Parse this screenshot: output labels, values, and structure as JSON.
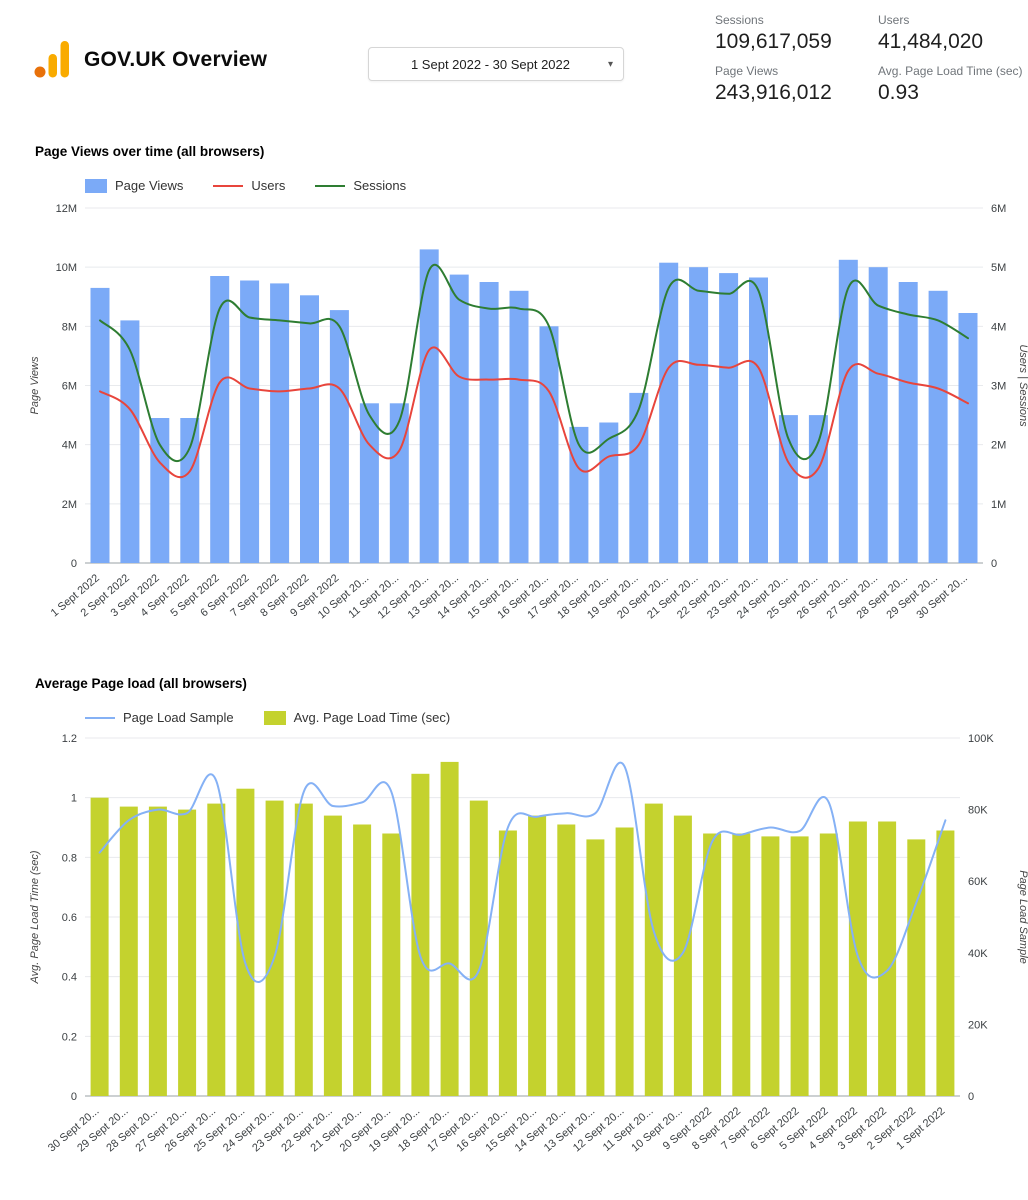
{
  "header": {
    "title": "GOV.UK Overview",
    "date_range": "1 Sept 2022 - 30 Sept 2022",
    "scorecards": [
      {
        "label": "Sessions",
        "value": "109,617,059"
      },
      {
        "label": "Users",
        "value": "41,484,020"
      },
      {
        "label": "Page Views",
        "value": "243,916,012"
      },
      {
        "label": "Avg. Page Load Time (sec)",
        "value": "0.93"
      }
    ]
  },
  "icons": {
    "dropdown_caret": "▾"
  },
  "colors": {
    "logo_primary": "#F9AB00",
    "logo_accent": "#E8710A"
  },
  "chart_data": [
    {
      "type": "bar",
      "subtype": "combo-bar-line",
      "title": "Page Views over time (all browsers)",
      "categories": [
        "1 Sept 2022",
        "2 Sept 2022",
        "3 Sept 2022",
        "4 Sept 2022",
        "5 Sept 2022",
        "6 Sept 2022",
        "7 Sept 2022",
        "8 Sept 2022",
        "9 Sept 2022",
        "10 Sept 20...",
        "11 Sept 20...",
        "12 Sept 20...",
        "13 Sept 20...",
        "14 Sept 20...",
        "15 Sept 20...",
        "16 Sept 20...",
        "17 Sept 20...",
        "18 Sept 20...",
        "19 Sept 20...",
        "20 Sept 20...",
        "21 Sept 20...",
        "22 Sept 20...",
        "23 Sept 20...",
        "24 Sept 20...",
        "25 Sept 20...",
        "26 Sept 20...",
        "27 Sept 20...",
        "28 Sept 20...",
        "29 Sept 20...",
        "30 Sept 20..."
      ],
      "series": [
        {
          "name": "Page Views",
          "type": "bar",
          "axis": "left",
          "color": "#7BAAF7",
          "values": [
            9300000,
            8200000,
            4900000,
            4900000,
            9700000,
            9550000,
            9450000,
            9050000,
            8550000,
            5400000,
            5400000,
            10600000,
            9750000,
            9500000,
            9200000,
            8000000,
            4600000,
            4750000,
            5750000,
            10150000,
            10000000,
            9800000,
            9650000,
            5000000,
            5000000,
            10250000,
            10000000,
            9500000,
            9200000,
            8450000
          ]
        },
        {
          "name": "Users",
          "type": "line",
          "axis": "right",
          "color": "#E8453C",
          "values": [
            2900000,
            2600000,
            1700000,
            1550000,
            3050000,
            2950000,
            2900000,
            2950000,
            2950000,
            2000000,
            1900000,
            3600000,
            3150000,
            3100000,
            3100000,
            2900000,
            1600000,
            1800000,
            2000000,
            3300000,
            3350000,
            3300000,
            3300000,
            1700000,
            1600000,
            3250000,
            3200000,
            3050000,
            2950000,
            2700000
          ]
        },
        {
          "name": "Sessions",
          "type": "line",
          "axis": "right",
          "color": "#2E7D32",
          "values": [
            4100000,
            3600000,
            2000000,
            1950000,
            4300000,
            4150000,
            4100000,
            4050000,
            4000000,
            2500000,
            2400000,
            4950000,
            4450000,
            4300000,
            4300000,
            4000000,
            2000000,
            2100000,
            2600000,
            4650000,
            4600000,
            4550000,
            4600000,
            2100000,
            2050000,
            4650000,
            4350000,
            4200000,
            4100000,
            3800000
          ]
        }
      ],
      "left_axis": {
        "label": "Page Views",
        "min": 0,
        "max": 12000000,
        "tick_values": [
          0,
          2000000,
          4000000,
          6000000,
          8000000,
          10000000,
          12000000
        ],
        "tick_labels": [
          "0",
          "2M",
          "4M",
          "6M",
          "8M",
          "10M",
          "12M"
        ]
      },
      "right_axis": {
        "label": "Users | Sessions",
        "min": 0,
        "max": 6000000,
        "tick_values": [
          0,
          1000000,
          2000000,
          3000000,
          4000000,
          5000000,
          6000000
        ],
        "tick_labels": [
          "0",
          "1M",
          "2M",
          "3M",
          "4M",
          "5M",
          "6M"
        ]
      },
      "grid": true,
      "legend_position": "top"
    },
    {
      "type": "bar",
      "subtype": "combo-bar-line",
      "title": "Average Page load (all browsers)",
      "categories": [
        "30 Sept 20...",
        "29 Sept 20...",
        "28 Sept 20...",
        "27 Sept 20...",
        "26 Sept 20...",
        "25 Sept 20...",
        "24 Sept 20...",
        "23 Sept 20...",
        "22 Sept 20...",
        "21 Sept 20...",
        "20 Sept 20...",
        "19 Sept 20...",
        "18 Sept 20...",
        "17 Sept 20...",
        "16 Sept 20...",
        "15 Sept 20...",
        "14 Sept 20...",
        "13 Sept 20...",
        "12 Sept 20...",
        "11 Sept 20...",
        "10 Sept 20...",
        "9 Sept 2022",
        "8 Sept 2022",
        "7 Sept 2022",
        "6 Sept 2022",
        "5 Sept 2022",
        "4 Sept 2022",
        "3 Sept 2022",
        "2 Sept 2022",
        "1 Sept 2022"
      ],
      "series": [
        {
          "name": "Page Load Sample",
          "type": "line",
          "axis": "right",
          "color": "#85B1F5",
          "values": [
            68000,
            77000,
            80000,
            79000,
            88000,
            37000,
            39000,
            85000,
            81000,
            82000,
            85000,
            39000,
            37000,
            35000,
            75000,
            78000,
            79000,
            79000,
            92000,
            46000,
            40000,
            71000,
            73000,
            75000,
            74000,
            82000,
            39000,
            35000,
            54000,
            77000
          ]
        },
        {
          "name": "Avg. Page Load Time (sec)",
          "type": "bar",
          "axis": "left",
          "color": "#C4D22E",
          "values": [
            1.0,
            0.97,
            0.97,
            0.96,
            0.98,
            1.03,
            0.99,
            0.98,
            0.94,
            0.91,
            0.88,
            1.08,
            1.12,
            0.99,
            0.89,
            0.94,
            0.91,
            0.86,
            0.9,
            0.98,
            0.94,
            0.88,
            0.88,
            0.87,
            0.87,
            0.88,
            0.92,
            0.92,
            0.86,
            0.89
          ]
        }
      ],
      "left_axis": {
        "label": "Avg. Page Load Time (sec)",
        "min": 0,
        "max": 1.2,
        "tick_values": [
          0,
          0.2,
          0.4,
          0.6,
          0.8,
          1,
          1.2
        ],
        "tick_labels": [
          "0",
          "0.2",
          "0.4",
          "0.6",
          "0.8",
          "1",
          "1.2"
        ]
      },
      "right_axis": {
        "label": "Page Load Sample",
        "min": 0,
        "max": 100000,
        "tick_values": [
          0,
          20000,
          40000,
          60000,
          80000,
          100000
        ],
        "tick_labels": [
          "0",
          "20K",
          "40K",
          "60K",
          "80K",
          "100K"
        ]
      },
      "grid": true,
      "legend_position": "top"
    }
  ]
}
